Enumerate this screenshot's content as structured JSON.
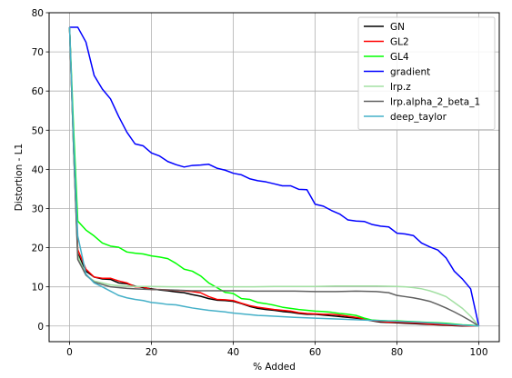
{
  "chart_data": {
    "type": "line",
    "title": "",
    "xlabel": "% Added",
    "ylabel": "Distortion - L1",
    "xlim": [
      -5,
      105
    ],
    "ylim": [
      -4,
      80
    ],
    "xticks": [
      0,
      20,
      40,
      60,
      80,
      100
    ],
    "yticks": [
      0,
      10,
      20,
      30,
      40,
      50,
      60,
      70,
      80
    ],
    "grid": true,
    "legend_position": "top-right",
    "series": [
      {
        "name": "GN",
        "color": "#000000",
        "x": [
          0,
          1,
          2,
          4,
          6,
          8,
          10,
          12,
          14,
          16,
          18,
          20,
          22,
          24,
          26,
          28,
          30,
          32,
          34,
          36,
          38,
          40,
          42,
          44,
          46,
          48,
          50,
          52,
          54,
          56,
          58,
          60,
          62,
          64,
          66,
          68,
          70,
          72,
          74,
          76,
          78,
          80,
          82,
          84,
          86,
          88,
          90,
          92,
          94,
          96,
          98,
          100
        ],
        "y": [
          76.3,
          45,
          18.5,
          14,
          12.5,
          12,
          11.9,
          11,
          10.8,
          10.2,
          9.8,
          9.5,
          9.2,
          9,
          8.7,
          8.5,
          8,
          7.6,
          7,
          6.6,
          6.5,
          6.3,
          5.7,
          5,
          4.5,
          4.2,
          4,
          3.7,
          3.5,
          3.2,
          3,
          3,
          2.8,
          2.6,
          2.4,
          2.2,
          2,
          1.7,
          1.3,
          1,
          0.9,
          0.8,
          0.7,
          0.6,
          0.5,
          0.4,
          0.3,
          0.2,
          0.1,
          0,
          0,
          0
        ]
      },
      {
        "name": "GL2",
        "color": "#ff0000",
        "x": [
          0,
          1,
          2,
          4,
          6,
          8,
          10,
          12,
          14,
          16,
          18,
          20,
          22,
          24,
          26,
          28,
          30,
          32,
          34,
          36,
          38,
          40,
          42,
          44,
          46,
          48,
          50,
          52,
          54,
          56,
          58,
          60,
          62,
          64,
          66,
          68,
          70,
          72,
          74,
          76,
          78,
          80,
          82,
          84,
          86,
          88,
          90,
          92,
          94,
          96,
          98,
          100
        ],
        "y": [
          76.3,
          46,
          19.5,
          14.5,
          12.5,
          12.2,
          12.2,
          11.5,
          11,
          10,
          10,
          9.3,
          9.3,
          9.2,
          9.1,
          9,
          8.8,
          8.5,
          7.5,
          6.8,
          6.7,
          6.5,
          5.8,
          5.2,
          4.8,
          4.5,
          4.2,
          4,
          3.8,
          3.4,
          3.2,
          3.1,
          3,
          3,
          2.8,
          2.5,
          2.2,
          1.8,
          1.4,
          1.2,
          1,
          1,
          0.9,
          0.8,
          0.7,
          0.5,
          0.4,
          0.3,
          0.2,
          0.1,
          0,
          0
        ]
      },
      {
        "name": "GL4",
        "color": "#00ff00",
        "x": [
          0,
          1,
          2,
          4,
          6,
          8,
          10,
          12,
          14,
          16,
          18,
          20,
          22,
          24,
          26,
          28,
          30,
          32,
          34,
          36,
          38,
          40,
          42,
          44,
          46,
          48,
          50,
          52,
          54,
          56,
          58,
          60,
          62,
          64,
          66,
          68,
          70,
          72,
          74,
          76,
          78,
          80,
          82,
          84,
          86,
          88,
          90,
          92,
          94,
          96,
          98,
          100
        ],
        "y": [
          76.3,
          50,
          26.8,
          24.5,
          23,
          21.2,
          20.4,
          20.1,
          18.9,
          18.6,
          18.4,
          17.9,
          17.6,
          17.2,
          16,
          14.5,
          14,
          12.8,
          11,
          9.8,
          8.6,
          8.3,
          7,
          6.8,
          6,
          5.7,
          5.3,
          4.8,
          4.5,
          4.2,
          4,
          3.8,
          3.7,
          3.5,
          3.2,
          3,
          2.7,
          2,
          1.5,
          1.4,
          1.3,
          1.3,
          1.2,
          1.1,
          1,
          0.9,
          0.8,
          0.7,
          0.5,
          0.3,
          0.2,
          0
        ]
      },
      {
        "name": "gradient",
        "color": "#0000ff",
        "x": [
          0,
          2,
          4,
          6,
          8,
          10,
          12,
          14,
          16,
          18,
          20,
          22,
          24,
          26,
          28,
          30,
          32,
          34,
          36,
          38,
          40,
          42,
          44,
          46,
          48,
          50,
          52,
          54,
          56,
          58,
          60,
          62,
          64,
          66,
          68,
          70,
          72,
          74,
          76,
          78,
          80,
          82,
          84,
          86,
          88,
          90,
          92,
          94,
          96,
          98,
          100
        ],
        "y": [
          76.3,
          76.3,
          72.5,
          64,
          60.5,
          58,
          53.5,
          49.5,
          46.5,
          46,
          44.2,
          43.4,
          42,
          41.2,
          40.6,
          41,
          41.1,
          41.3,
          40.3,
          39.8,
          39,
          38.6,
          37.6,
          37.1,
          36.8,
          36.3,
          35.8,
          35.8,
          34.9,
          34.8,
          31.1,
          30.6,
          29.5,
          28.6,
          27.1,
          26.8,
          26.7,
          25.9,
          25.5,
          25.3,
          23.7,
          23.5,
          23.1,
          21.2,
          20.2,
          19.4,
          17.4,
          14,
          12,
          9.5,
          0
        ]
      },
      {
        "name": "lrp.z",
        "color": "#a3e0a3",
        "x": [
          0,
          1,
          2,
          4,
          6,
          8,
          10,
          12,
          14,
          16,
          18,
          20,
          25,
          30,
          35,
          40,
          45,
          50,
          55,
          60,
          65,
          70,
          75,
          80,
          82,
          84,
          86,
          88,
          90,
          92,
          94,
          96,
          98,
          100
        ],
        "y": [
          76.3,
          45,
          18,
          13,
          11.5,
          11,
          10.5,
          10.3,
          10.2,
          10.1,
          10.1,
          10.1,
          10,
          10,
          10,
          10,
          10,
          10.1,
          10.1,
          10.1,
          10.2,
          10.2,
          10.2,
          10.1,
          10,
          9.8,
          9.5,
          9,
          8.3,
          7.5,
          6,
          4.5,
          2.5,
          0
        ]
      },
      {
        "name": "lrp.alpha_2_beta_1",
        "color": "#606060",
        "x": [
          0,
          1,
          2,
          4,
          6,
          8,
          10,
          12,
          14,
          16,
          18,
          20,
          25,
          30,
          35,
          40,
          45,
          50,
          55,
          60,
          65,
          70,
          75,
          78,
          80,
          82,
          84,
          86,
          88,
          90,
          92,
          94,
          96,
          98,
          100
        ],
        "y": [
          76.3,
          45,
          17,
          13,
          11.2,
          10.6,
          10,
          9.8,
          9.6,
          9.5,
          9.4,
          9.3,
          9.2,
          9,
          9,
          9,
          8.9,
          8.9,
          8.9,
          8.8,
          8.8,
          8.9,
          8.8,
          8.5,
          7.8,
          7.5,
          7.2,
          6.8,
          6.3,
          5.5,
          4.6,
          3.6,
          2.5,
          1.3,
          0
        ]
      },
      {
        "name": "deep_taylor",
        "color": "#45b0c8",
        "x": [
          0,
          1,
          2,
          4,
          6,
          8,
          10,
          12,
          14,
          16,
          18,
          20,
          22,
          24,
          26,
          28,
          30,
          32,
          34,
          36,
          38,
          40,
          42,
          44,
          46,
          48,
          50,
          55,
          60,
          65,
          70,
          75,
          80,
          85,
          90,
          95,
          100
        ],
        "y": [
          76.3,
          47,
          23,
          13.3,
          11,
          10,
          8.9,
          7.8,
          7.2,
          6.8,
          6.5,
          6,
          5.8,
          5.5,
          5.4,
          5,
          4.6,
          4.3,
          4,
          3.8,
          3.6,
          3.3,
          3.1,
          2.9,
          2.7,
          2.6,
          2.5,
          2.2,
          2,
          1.8,
          1.6,
          1.4,
          1.2,
          1,
          0.7,
          0.3,
          0
        ]
      }
    ]
  }
}
